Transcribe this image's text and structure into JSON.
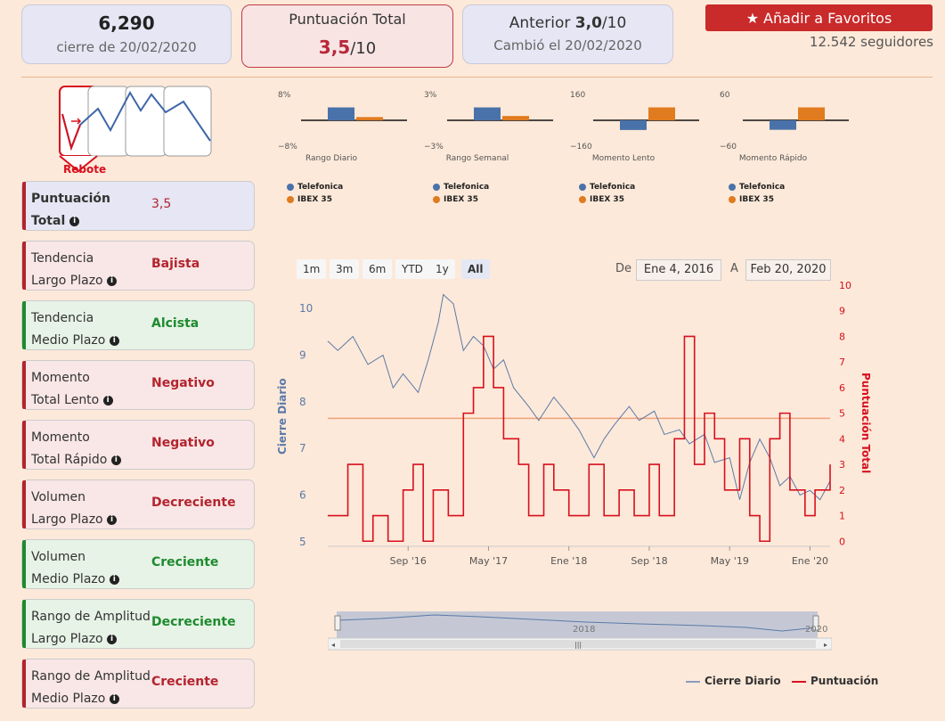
{
  "header": {
    "price": "6,290",
    "price_date": "cierre de 20/02/2020",
    "score_title": "Puntuación Total",
    "score_value": "3,5",
    "score_max": "/10",
    "prev_label": "Anterior",
    "prev_value": "3,0",
    "prev_max": "/10",
    "prev_changed": "Cambió el 20/02/2020",
    "fav_button": "Añadir a Favoritos",
    "followers": "12.542 seguidores"
  },
  "pattern": {
    "label": "Rebote"
  },
  "statuses": [
    {
      "line1": "Puntuación",
      "line2": "Total",
      "value": "3,5",
      "kind": "blue"
    },
    {
      "line1": "Tendencia",
      "line2": "Largo Plazo",
      "value": "Bajista",
      "kind": "red"
    },
    {
      "line1": "Tendencia",
      "line2": "Medio Plazo",
      "value": "Alcista",
      "kind": "green"
    },
    {
      "line1": "Momento",
      "line2": "Total Lento",
      "value": "Negativo",
      "kind": "red"
    },
    {
      "line1": "Momento",
      "line2": "Total Rápido",
      "value": "Negativo",
      "kind": "red"
    },
    {
      "line1": "Volumen",
      "line2": "Largo Plazo",
      "value": "Decreciente",
      "kind": "red"
    },
    {
      "line1": "Volumen",
      "line2": "Medio Plazo",
      "value": "Creciente",
      "kind": "green"
    },
    {
      "line1": "Rango de Amplitud",
      "line2": "Largo Plazo",
      "value": "Decreciente",
      "kind": "green"
    },
    {
      "line1": "Rango de Amplitud",
      "line2": "Medio Plazo",
      "value": "Creciente",
      "kind": "red"
    }
  ],
  "minis": [
    {
      "name": "Rango Diario",
      "max_label": "8%",
      "min_label": "−8%",
      "telefonica": 4,
      "ibex": 1
    },
    {
      "name": "Rango Semanal",
      "max_label": "3%",
      "min_label": "−3%",
      "telefonica": 1.5,
      "ibex": 0.5
    },
    {
      "name": "Momento Lento",
      "max_label": "160",
      "min_label": "−160",
      "telefonica": -60,
      "ibex": 80
    },
    {
      "name": "Momento Rápido",
      "max_label": "60",
      "min_label": "−60",
      "telefonica": -22,
      "ibex": 30
    }
  ],
  "mini_legend": {
    "telefonica": "Telefonica",
    "ibex": "IBEX 35"
  },
  "colors": {
    "telefonica": "#4a72aa",
    "ibex": "#e07b1f",
    "score": "#d7101e",
    "price": "#5b79a8"
  },
  "range": {
    "buttons": [
      "1m",
      "3m",
      "6m",
      "YTD",
      "1y",
      "All"
    ],
    "from_label": "De",
    "from": "Ene 4, 2016",
    "to_label": "A",
    "to": "Feb 20, 2020"
  },
  "navigator_labels": [
    "2018",
    "2020"
  ],
  "legend": {
    "price": "Cierre Diario",
    "score": "Puntuación"
  },
  "chart_data": {
    "type": "line",
    "title": "",
    "xlabel": "",
    "ylabel": "Cierre Diario",
    "ylabel_right": "Puntuación Total",
    "ylim": [
      4.9,
      10.5
    ],
    "ylim_right": [
      -0.2,
      10
    ],
    "x_ticks": [
      "Sep '16",
      "Ene '18",
      "May '17",
      "Sep '18",
      "May '19",
      "Ene '20"
    ],
    "y_ticks": [
      5,
      6,
      7,
      8,
      9,
      10
    ],
    "y_ticks_right": [
      0,
      1,
      2,
      3,
      4,
      5,
      6,
      7,
      8,
      9,
      10
    ],
    "reference_line": 4.8,
    "series": [
      {
        "name": "Cierre Diario",
        "axis": "left",
        "x": [
          0,
          0.02,
          0.05,
          0.08,
          0.11,
          0.13,
          0.15,
          0.18,
          0.2,
          0.22,
          0.23,
          0.25,
          0.27,
          0.29,
          0.31,
          0.33,
          0.35,
          0.37,
          0.4,
          0.42,
          0.45,
          0.48,
          0.5,
          0.53,
          0.55,
          0.57,
          0.6,
          0.62,
          0.65,
          0.67,
          0.7,
          0.72,
          0.75,
          0.77,
          0.8,
          0.82,
          0.84,
          0.86,
          0.88,
          0.9,
          0.92,
          0.94,
          0.96,
          0.98,
          1.0
        ],
        "values": [
          9.3,
          9.1,
          9.4,
          8.8,
          9.0,
          8.3,
          8.6,
          8.2,
          8.9,
          9.7,
          10.3,
          10.1,
          9.1,
          9.4,
          9.2,
          8.7,
          8.9,
          8.3,
          7.9,
          7.6,
          8.1,
          7.7,
          7.4,
          6.8,
          7.2,
          7.5,
          7.9,
          7.6,
          7.8,
          7.3,
          7.4,
          7.1,
          7.3,
          6.7,
          6.8,
          5.9,
          6.7,
          7.2,
          6.8,
          6.2,
          6.4,
          6.0,
          6.1,
          5.9,
          6.3
        ]
      },
      {
        "name": "Puntuación",
        "axis": "right",
        "step": true,
        "x": [
          0,
          0.04,
          0.07,
          0.09,
          0.12,
          0.15,
          0.17,
          0.19,
          0.21,
          0.24,
          0.27,
          0.29,
          0.31,
          0.33,
          0.35,
          0.38,
          0.4,
          0.43,
          0.45,
          0.48,
          0.52,
          0.55,
          0.58,
          0.61,
          0.64,
          0.66,
          0.69,
          0.71,
          0.73,
          0.75,
          0.77,
          0.79,
          0.82,
          0.84,
          0.86,
          0.88,
          0.9,
          0.92,
          0.95,
          0.97,
          1.0
        ],
        "values": [
          1,
          3,
          0,
          1,
          0,
          2,
          3,
          0,
          2,
          1,
          5,
          6,
          8,
          6,
          4,
          3,
          1,
          3,
          2,
          1,
          3,
          1,
          2,
          1,
          3,
          1,
          4,
          8,
          3,
          5,
          4,
          2,
          4,
          1,
          0,
          4,
          5,
          2,
          1,
          2,
          3
        ]
      }
    ]
  }
}
